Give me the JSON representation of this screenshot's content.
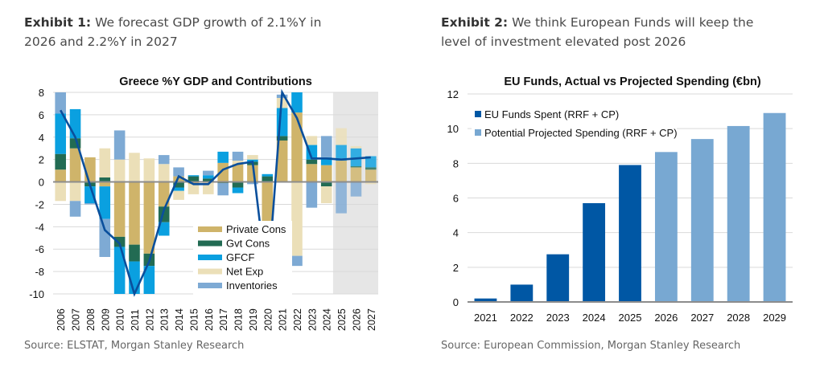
{
  "exhibit1": {
    "label": "Exhibit 1:",
    "title_line1": " We forecast GDP growth of 2.1%Y in",
    "title_line2": "2026 and 2.2%Y in 2027",
    "source": "Source: ELSTAT, Morgan Stanley Research"
  },
  "exhibit2": {
    "label": "Exhibit 2:",
    "title_line1": " We think European Funds will keep the",
    "title_line2": "level of investment elevated post 2026",
    "source": "Source: European Commission, Morgan Stanley Research"
  },
  "colors": {
    "private_cons": "#cfb46a",
    "gvt_cons": "#226b53",
    "gfcf": "#0aa0e0",
    "net_exp": "#ebdfb8",
    "inventories": "#7eaad4",
    "gdp_line": "#0a4f9c",
    "forecast_shade": "#e6e6e6",
    "eu_spent": "#0057a4",
    "eu_projected": "#78a8d2"
  },
  "chart_data": [
    {
      "type": "bar",
      "stacked": true,
      "title": "Greece %Y GDP and Contributions",
      "xlabel": "",
      "ylabel": "",
      "ylim": [
        -10,
        8
      ],
      "yticks": [
        8,
        6,
        4,
        2,
        0,
        -2,
        -4,
        -6,
        -8,
        -10
      ],
      "grid": true,
      "legend_position": "bottom-center",
      "forecast_shaded_categories": [
        "2025",
        "2026",
        "2027"
      ],
      "categories": [
        "2006",
        "2007",
        "2008",
        "2009",
        "2010",
        "2011",
        "2012",
        "2013",
        "2014",
        "2015",
        "2016",
        "2017",
        "2018",
        "2019",
        "2020",
        "2021",
        "2022",
        "2023",
        "2024",
        "2025",
        "2026",
        "2027"
      ],
      "series": [
        {
          "name": "Private Cons",
          "key": "private_cons",
          "values": [
            1.1,
            3.0,
            2.2,
            -0.4,
            -4.9,
            -5.6,
            -6.4,
            -2.2,
            0.5,
            -0.2,
            0.0,
            1.7,
            1.6,
            1.5,
            -4.0,
            3.7,
            6.2,
            1.6,
            1.5,
            1.9,
            1.3,
            1.1
          ]
        },
        {
          "name": "Gvt Cons",
          "key": "gvt_cons",
          "values": [
            1.4,
            0.9,
            -0.4,
            0.4,
            -0.9,
            -1.5,
            -1.1,
            -1.4,
            -0.5,
            0.5,
            0.3,
            -0.1,
            -0.5,
            0.3,
            0.5,
            0.4,
            0.0,
            0.4,
            -0.4,
            0.0,
            0.1,
            0.2
          ]
        },
        {
          "name": "GFCF",
          "key": "gfcf",
          "values": [
            3.6,
            2.6,
            -1.5,
            -2.9,
            -4.3,
            -3.0,
            -2.6,
            -1.2,
            -0.3,
            0.1,
            0.3,
            1.0,
            -0.5,
            0.2,
            0.2,
            2.5,
            3.0,
            1.3,
            0.7,
            1.4,
            1.6,
            1.0
          ]
        },
        {
          "name": "Net Exp",
          "key": "net_exp",
          "values": [
            -1.7,
            -1.7,
            0.0,
            2.6,
            2.0,
            2.6,
            2.1,
            1.6,
            -0.8,
            -0.9,
            -1.1,
            0.0,
            0.3,
            0.4,
            -3.4,
            0.9,
            -6.6,
            0.8,
            -1.5,
            1.5,
            0.2,
            -0.2
          ]
        },
        {
          "name": "Inventories",
          "key": "inventories",
          "values": [
            1.9,
            -1.4,
            -0.1,
            -3.4,
            2.6,
            0.0,
            0.0,
            0.8,
            0.8,
            0.0,
            0.4,
            -1.1,
            0.8,
            -0.2,
            0.0,
            0.3,
            -0.9,
            -2.3,
            1.9,
            -2.8,
            -1.3,
            0.0
          ]
        }
      ],
      "line": {
        "name": "GDP %Y",
        "key": "gdp_line",
        "values": [
          6.4,
          4.0,
          -0.3,
          -4.3,
          -5.5,
          -10.1,
          -7.1,
          -2.5,
          0.5,
          -0.2,
          -0.2,
          1.1,
          1.6,
          1.8,
          -9.3,
          8.4,
          5.7,
          2.1,
          2.1,
          2.0,
          2.1,
          2.2
        ]
      }
    },
    {
      "type": "bar",
      "title": "EU Funds, Actual vs Projected Spending (€bn)",
      "xlabel": "",
      "ylabel": "",
      "ylim": [
        0,
        12
      ],
      "yticks": [
        12,
        10,
        8,
        6,
        4,
        2,
        0
      ],
      "grid": true,
      "legend_position": "top-left",
      "categories": [
        "2021",
        "2022",
        "2023",
        "2024",
        "2025",
        "2026",
        "2027",
        "2028",
        "2029"
      ],
      "series": [
        {
          "name": "EU Funds Spent (RRF + CP)",
          "key": "eu_spent",
          "values": [
            0.2,
            1.0,
            2.75,
            5.7,
            7.9,
            null,
            null,
            null,
            null
          ]
        },
        {
          "name": "Potential Projected Spending (RRF + CP)",
          "key": "eu_projected",
          "values": [
            null,
            null,
            null,
            null,
            null,
            8.65,
            9.4,
            10.15,
            10.9
          ]
        }
      ]
    }
  ]
}
